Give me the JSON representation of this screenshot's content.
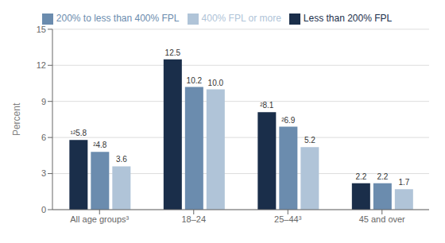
{
  "chart_data": {
    "type": "bar",
    "categories": [
      "All age groups³",
      "18–24",
      "25–44³",
      "45 and over"
    ],
    "series": [
      {
        "name": "Less than 200% FPL",
        "color": "#1a2e4a",
        "values": [
          5.8,
          12.5,
          8.1,
          2.2
        ],
        "value_labels": [
          "¹²5.8",
          "12.5",
          "²8.1",
          "2.2"
        ]
      },
      {
        "name": "200% to less than 400% FPL",
        "color": "#6b8cae",
        "values": [
          4.8,
          10.2,
          6.9,
          2.2
        ],
        "value_labels": [
          "²4.8",
          "10.2",
          "²6.9",
          "2.2"
        ]
      },
      {
        "name": "400% FPL or more",
        "color": "#b0c4d8",
        "values": [
          3.6,
          10.0,
          5.2,
          1.7
        ],
        "value_labels": [
          "3.6",
          "10.0",
          "5.2",
          "1.7"
        ]
      }
    ],
    "ylabel": "Percent",
    "ylim": [
      0,
      15
    ],
    "yticks": [
      0,
      3,
      6,
      9,
      12,
      15
    ],
    "grid": true,
    "data_labels": true
  }
}
